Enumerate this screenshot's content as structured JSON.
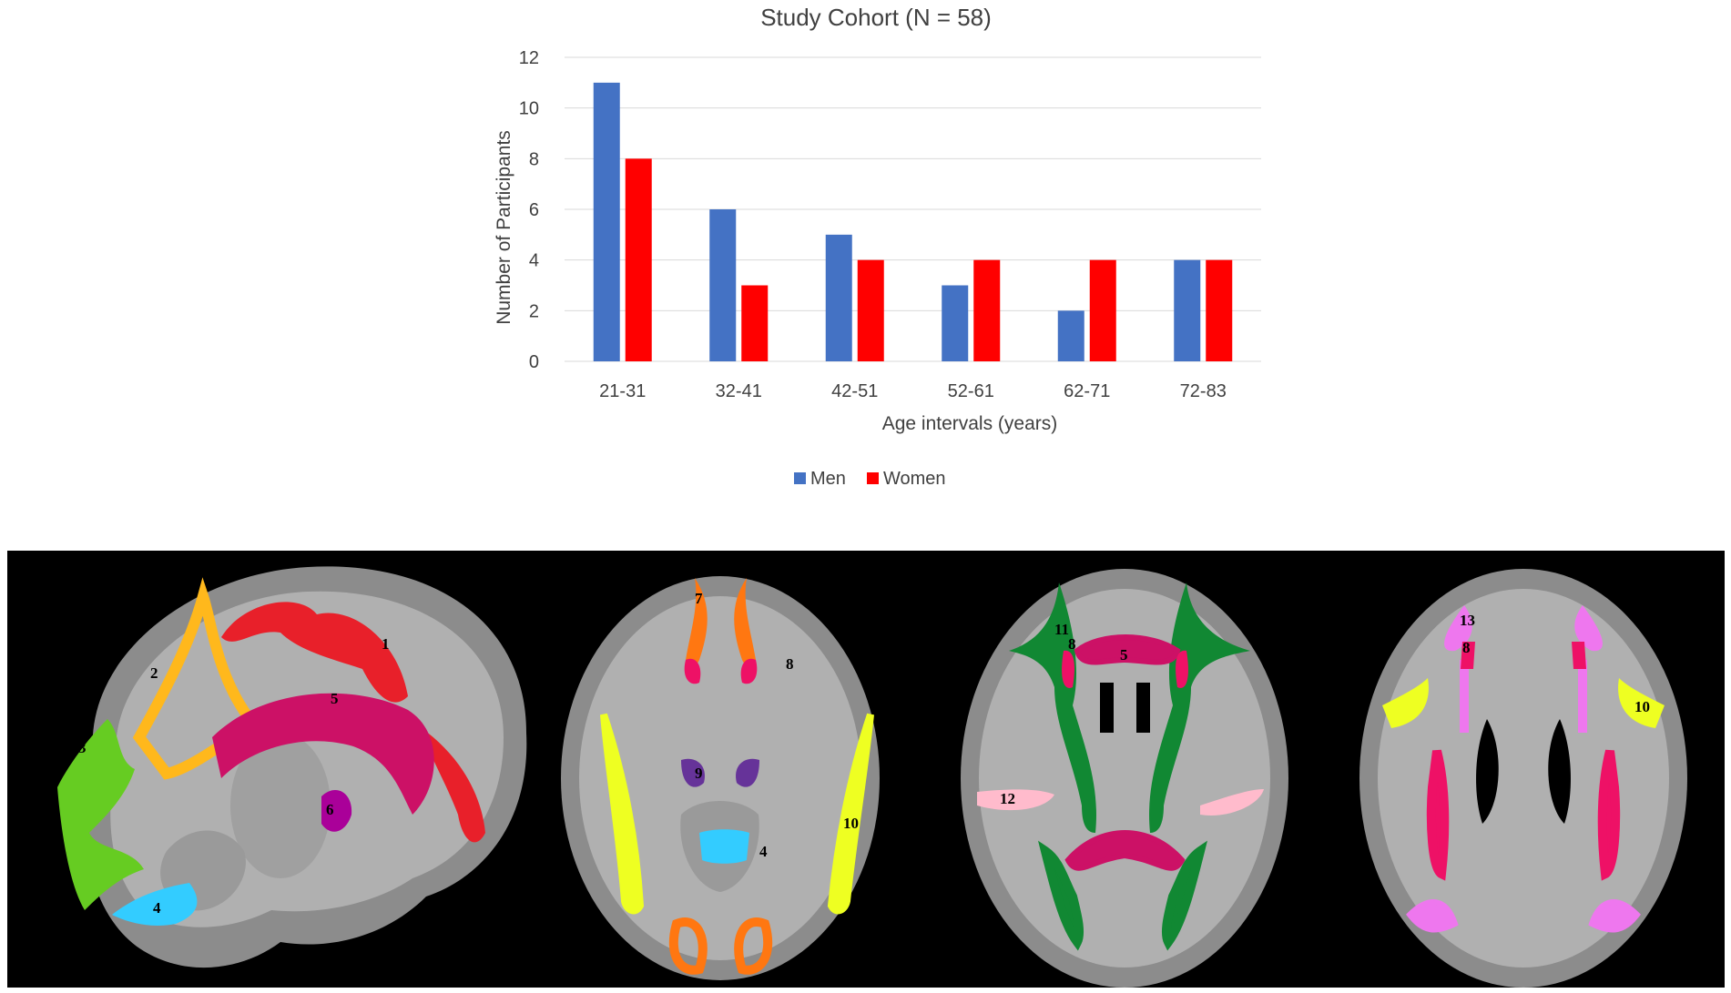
{
  "chart_data": {
    "type": "bar",
    "title": "Study Cohort (N = 58)",
    "xlabel": "Age intervals (years)",
    "ylabel": "Number  of Participants",
    "categories": [
      "21-31",
      "32-41",
      "42-51",
      "52-61",
      "62-71",
      "72-83"
    ],
    "series": [
      {
        "name": "Men",
        "color": "#4472C4",
        "values": [
          11,
          6,
          5,
          3,
          2,
          4
        ]
      },
      {
        "name": "Women",
        "color": "#FF0000",
        "values": [
          8,
          3,
          4,
          4,
          4,
          4
        ]
      }
    ],
    "ylim": [
      0,
      12
    ],
    "yticks": [
      0,
      2,
      4,
      6,
      8,
      10,
      12
    ],
    "grid": true,
    "legend_position": "bottom"
  },
  "brain_panel": {
    "background": "#000000",
    "views": [
      "sagittal",
      "axial-inferior",
      "axial-middle",
      "axial-superior"
    ],
    "region_labels": {
      "sagittal": [
        "1",
        "2",
        "3",
        "4",
        "5",
        "6"
      ],
      "axial_inferior": [
        "7",
        "8",
        "9",
        "10",
        "4"
      ],
      "axial_middle": [
        "11",
        "8",
        "5",
        "12"
      ],
      "axial_superior": [
        "13",
        "8",
        "10"
      ]
    },
    "region_colors": {
      "r1": "#E8202A",
      "r2": "#FFB81C",
      "r3": "#66CC22",
      "r4": "#33CCFF",
      "r5": "#CC1166",
      "r6": "#AA0099",
      "r7": "#FF7711",
      "r8": "#EE1166",
      "r9": "#663399",
      "r10": "#EEFF22",
      "r11": "#118833",
      "r12": "#FFBBCC",
      "r13": "#EE77EE"
    }
  }
}
